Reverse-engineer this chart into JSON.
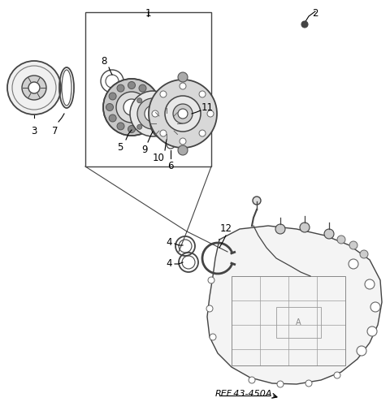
{
  "background_color": "#ffffff",
  "fig_width": 4.8,
  "fig_height": 4.95,
  "dpi": 100,
  "ref_label": "REF.43-450A",
  "line_color": "#444444",
  "gray_dark": "#555555",
  "gray_med": "#888888",
  "gray_light": "#bbbbbb"
}
